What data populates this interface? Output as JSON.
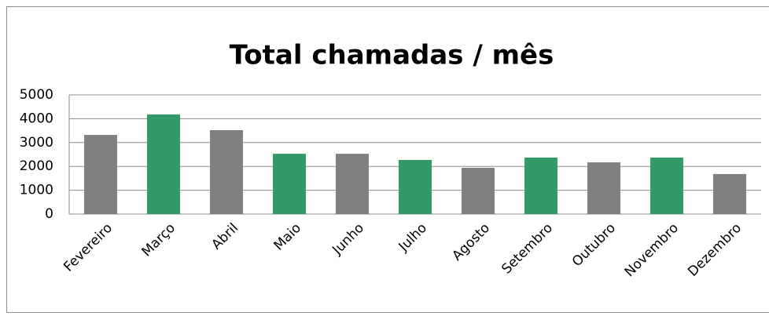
{
  "chart_data": {
    "type": "bar",
    "title": "Total chamadas / mês",
    "categories": [
      "Fevereiro",
      "Março",
      "Abril",
      "Maio",
      "Junho",
      "Julho",
      "Agosto",
      "Setembro",
      "Outubro",
      "Novembro",
      "Dezembro"
    ],
    "values": [
      3320,
      4180,
      3520,
      2530,
      2530,
      2270,
      1940,
      2370,
      2170,
      2370,
      1680
    ],
    "colors": [
      "#808080",
      "#339966",
      "#808080",
      "#339966",
      "#808080",
      "#339966",
      "#808080",
      "#339966",
      "#808080",
      "#339966",
      "#808080"
    ],
    "ylim": [
      0,
      5000
    ],
    "yticks": [
      0,
      1000,
      2000,
      3000,
      4000,
      5000
    ],
    "grid": true
  }
}
